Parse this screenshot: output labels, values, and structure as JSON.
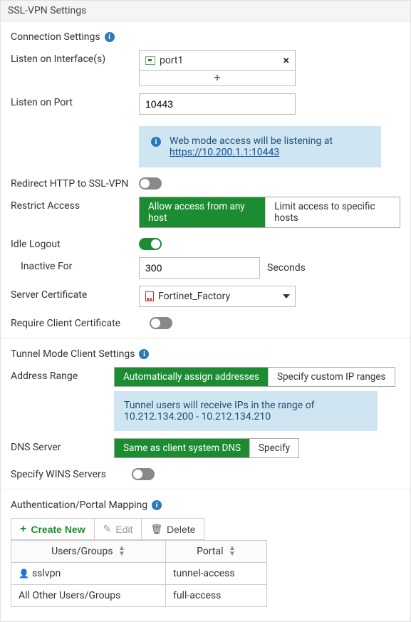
{
  "pageTitle": "SSL-VPN Settings",
  "connection": {
    "title": "Connection Settings",
    "listenInterfacesLabel": "Listen on Interface(s)",
    "interface": "port1",
    "listenPortLabel": "Listen on Port",
    "port": "10443",
    "webModeMsgPrefix": "Web mode access will be listening at ",
    "webModeUrl": "https://10.200.1.1:10443",
    "redirectLabel": "Redirect HTTP to SSL-VPN",
    "redirectOn": false,
    "restrictLabel": "Restrict Access",
    "restrictOptions": [
      "Allow access from any host",
      "Limit access to specific hosts"
    ],
    "restrictActive": 0,
    "idleLogoutLabel": "Idle Logout",
    "idleLogoutOn": true,
    "inactiveLabel": "Inactive For",
    "inactiveValue": "300",
    "inactiveUnit": "Seconds",
    "serverCertLabel": "Server Certificate",
    "serverCertValue": "Fortinet_Factory",
    "requireClientCertLabel": "Require Client Certificate",
    "requireClientCertOn": false
  },
  "tunnel": {
    "title": "Tunnel Mode Client Settings",
    "addressRangeLabel": "Address Range",
    "addressRangeOptions": [
      "Automatically assign addresses",
      "Specify custom IP ranges"
    ],
    "addressRangeActive": 0,
    "rangeInfo": "Tunnel users will receive IPs in the range of 10.212.134.200 - 10.212.134.210",
    "dnsLabel": "DNS Server",
    "dnsOptions": [
      "Same as client system DNS",
      "Specify"
    ],
    "dnsActive": 0,
    "winsLabel": "Specify WINS Servers",
    "winsOn": false
  },
  "auth": {
    "title": "Authentication/Portal Mapping",
    "createNew": "Create New",
    "edit": "Edit",
    "delete": "Delete",
    "col1": "Users/Groups",
    "col2": "Portal",
    "rows": [
      {
        "ug": "sslvpn",
        "portal": "tunnel-access",
        "icon": true
      },
      {
        "ug": "All Other Users/Groups",
        "portal": "full-access",
        "icon": false
      }
    ]
  }
}
